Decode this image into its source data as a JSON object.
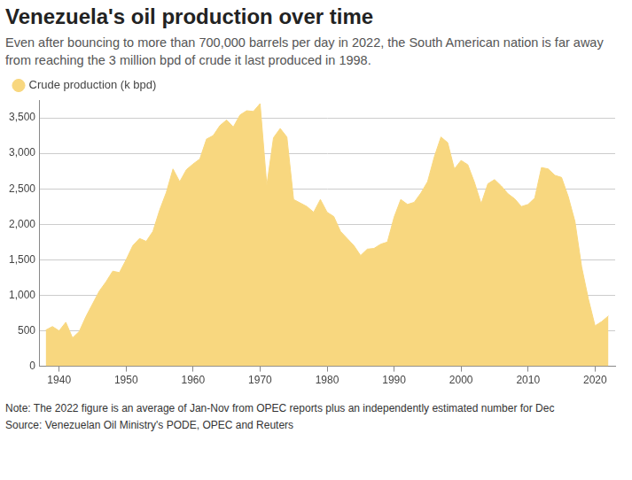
{
  "chart_data": {
    "type": "area",
    "title": "Venezuela's oil production over time",
    "subtitle": "Even after bouncing to more than 700,000 barrels per day in 2022, the South American nation is far away from reaching the 3 million bpd of crude it last produced in 1998.",
    "notes": [
      "Note: The 2022 figure is an average of Jan-Nov from OPEC reports plus an independently estimated number for Dec",
      "Source: Venezuelan Oil Ministry's PODE, OPEC and Reuters"
    ],
    "x": [
      1938,
      1939,
      1940,
      1941,
      1942,
      1943,
      1944,
      1945,
      1946,
      1947,
      1948,
      1949,
      1950,
      1951,
      1952,
      1953,
      1954,
      1955,
      1956,
      1957,
      1958,
      1959,
      1960,
      1961,
      1962,
      1963,
      1964,
      1965,
      1966,
      1967,
      1968,
      1969,
      1970,
      1971,
      1972,
      1973,
      1974,
      1975,
      1976,
      1977,
      1978,
      1979,
      1980,
      1981,
      1982,
      1983,
      1984,
      1985,
      1986,
      1987,
      1988,
      1989,
      1990,
      1991,
      1992,
      1993,
      1994,
      1995,
      1996,
      1997,
      1998,
      1999,
      2000,
      2001,
      2002,
      2003,
      2004,
      2005,
      2006,
      2007,
      2008,
      2009,
      2010,
      2011,
      2012,
      2013,
      2014,
      2015,
      2016,
      2017,
      2018,
      2019,
      2020,
      2021,
      2022
    ],
    "series": [
      {
        "name": "Crude production (k bpd)",
        "color": "#f8d77f",
        "values": [
          510,
          560,
          500,
          620,
          400,
          490,
          700,
          880,
          1060,
          1190,
          1340,
          1320,
          1500,
          1700,
          1800,
          1760,
          1900,
          2200,
          2450,
          2780,
          2600,
          2770,
          2850,
          2920,
          3200,
          3250,
          3390,
          3470,
          3370,
          3540,
          3600,
          3590,
          3700,
          2550,
          3220,
          3350,
          3230,
          2350,
          2300,
          2250,
          2170,
          2350,
          2170,
          2110,
          1900,
          1800,
          1700,
          1560,
          1650,
          1660,
          1720,
          1750,
          2100,
          2350,
          2280,
          2310,
          2440,
          2600,
          2950,
          3230,
          3150,
          2780,
          2900,
          2840,
          2590,
          2290,
          2570,
          2630,
          2540,
          2430,
          2360,
          2250,
          2280,
          2370,
          2800,
          2780,
          2690,
          2660,
          2390,
          2040,
          1400,
          950,
          570,
          630,
          710
        ]
      }
    ],
    "xlim": [
      1937,
      2023
    ],
    "xticks": [
      1940,
      1950,
      1960,
      1970,
      1980,
      1990,
      2000,
      2010,
      2020
    ],
    "ylim": [
      0,
      3750
    ],
    "yticks": [
      0,
      500,
      {
        "value": 1000,
        "label": "1,000"
      },
      {
        "value": 1500,
        "label": "1,500"
      },
      {
        "value": 2000,
        "label": "2,000"
      },
      {
        "value": 2500,
        "label": "2,500"
      },
      {
        "value": 3000,
        "label": "3,000"
      },
      {
        "value": 3500,
        "label": "3,500"
      }
    ],
    "grid": "y",
    "legend": "top-left"
  }
}
